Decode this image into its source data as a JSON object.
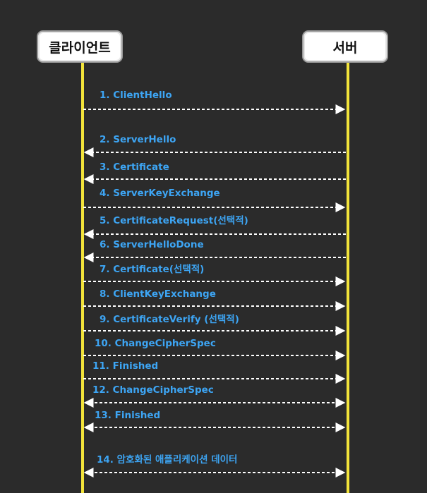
{
  "participants": {
    "client": "클라이언트",
    "server": "서버"
  },
  "colors": {
    "background": "#2b2b2b",
    "lifeline": "#f2e33a",
    "arrow": "#ffffff",
    "label": "#3da5f4"
  },
  "messages": [
    {
      "label": "1. ClientHello",
      "direction": "to-server"
    },
    {
      "label": "2. ServerHello",
      "direction": "to-client"
    },
    {
      "label": "3. Certificate",
      "direction": "to-client"
    },
    {
      "label": "4. ServerKeyExchange",
      "direction": "to-server"
    },
    {
      "label": "5. CertificateRequest(선택적)",
      "direction": "to-client"
    },
    {
      "label": "6. ServerHelloDone",
      "direction": "to-client"
    },
    {
      "label": "7. Certificate(선택적)",
      "direction": "to-server"
    },
    {
      "label": "8. ClientKeyExchange",
      "direction": "to-server"
    },
    {
      "label": "9. CertificateVerify (선택적)",
      "direction": "to-server"
    },
    {
      "label": "10. ChangeCipherSpec",
      "direction": "to-server"
    },
    {
      "label": "11. Finished",
      "direction": "to-server"
    },
    {
      "label": "12. ChangeCipherSpec",
      "direction": "both"
    },
    {
      "label": "13. Finished",
      "direction": "both"
    },
    {
      "label": "14. 암호화된 애플리케이션 데이터",
      "direction": "both"
    }
  ]
}
